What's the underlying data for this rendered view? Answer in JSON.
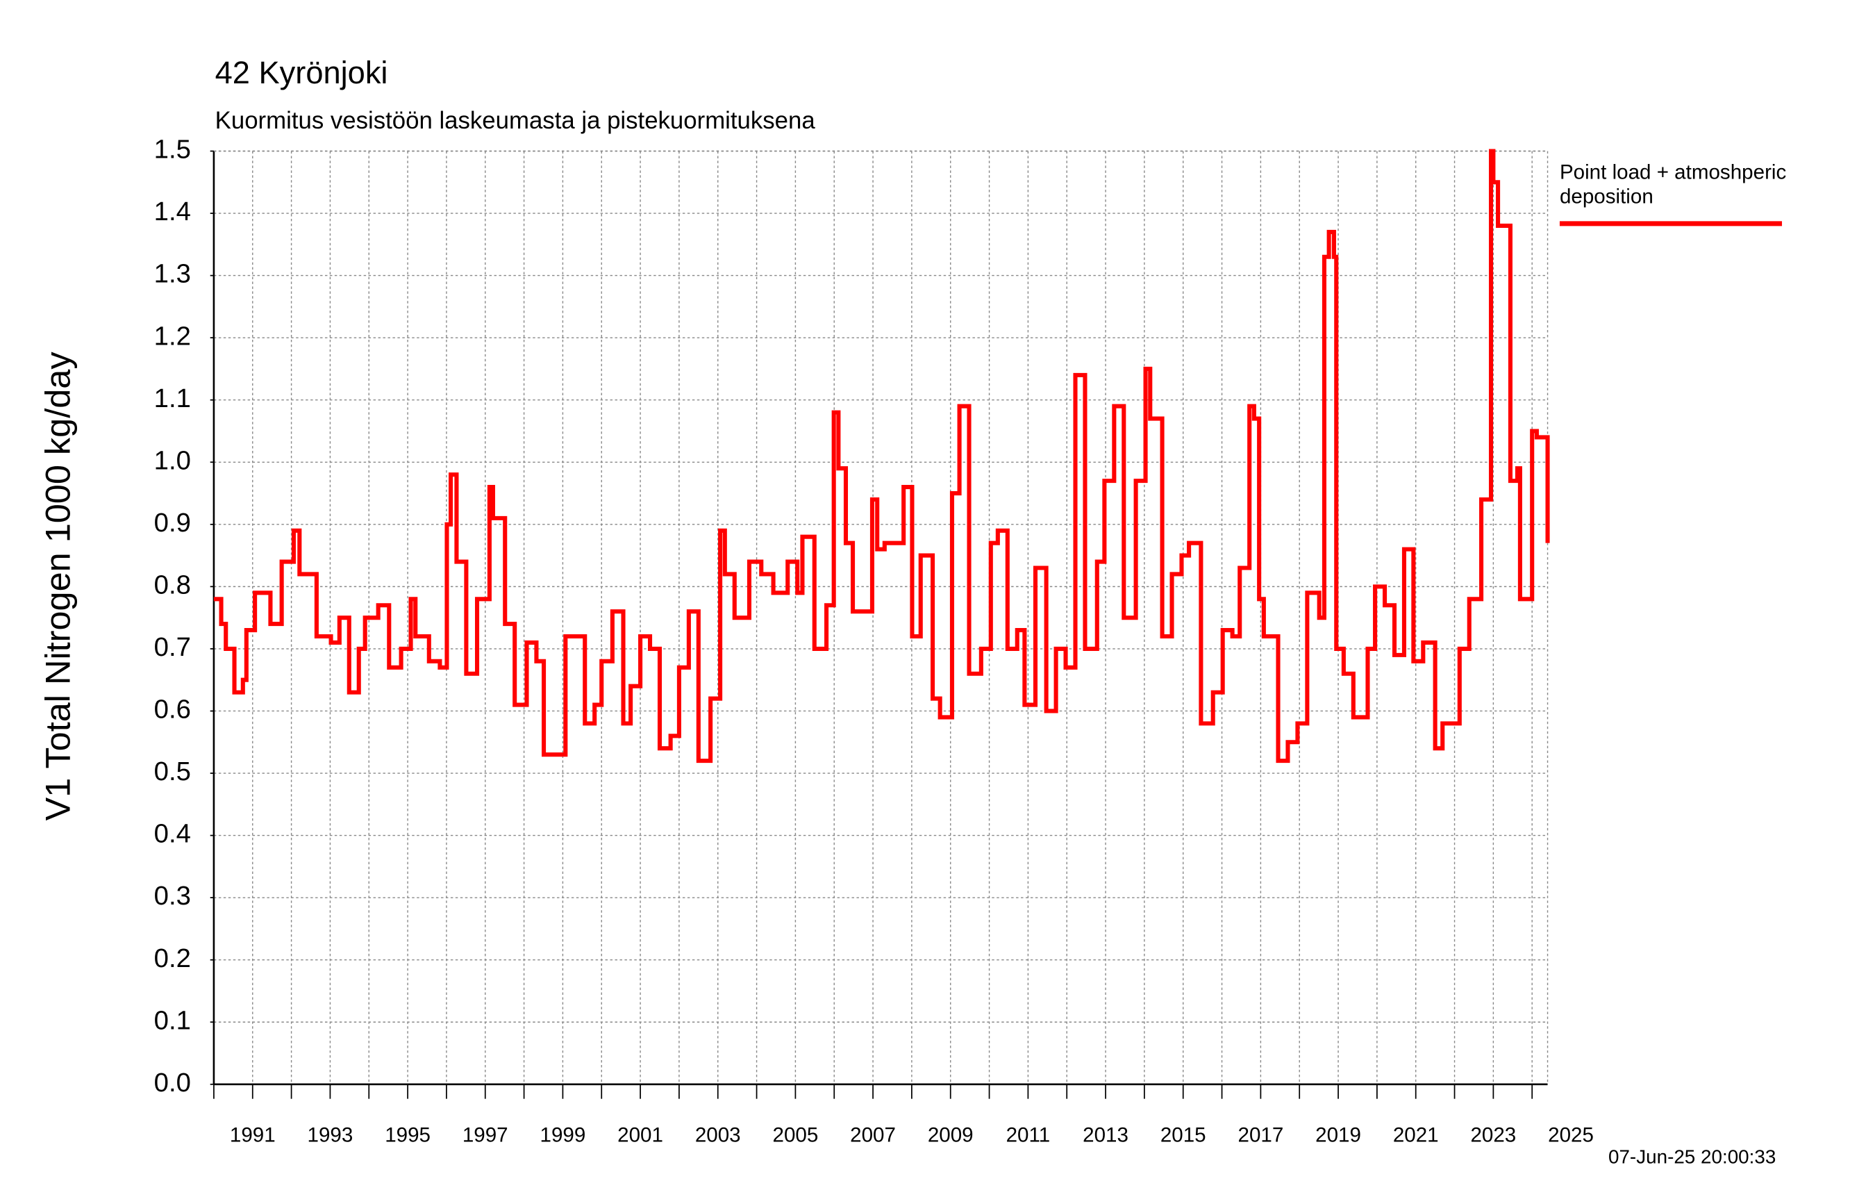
{
  "chart_data": {
    "type": "line",
    "step": true,
    "title": "42 Kyrönjoki",
    "subtitle": "Kuormitus vesistöön laskeumasta ja pistekuormituksena",
    "y_label": "V1 Total Nitrogen 1000 kg/day",
    "timestamp": "07-Jun-25 20:00:33",
    "xlim": [
      1990,
      2024.4
    ],
    "ylim": [
      0,
      1.5
    ],
    "xticks": [
      1991,
      1993,
      1995,
      1997,
      1999,
      2001,
      2003,
      2005,
      2007,
      2009,
      2011,
      2013,
      2015,
      2017,
      2019,
      2021,
      2023,
      2025
    ],
    "xminor_ticks": [
      1990,
      1992,
      1994,
      1996,
      1998,
      2000,
      2002,
      2004,
      2006,
      2008,
      2010,
      2012,
      2014,
      2016,
      2018,
      2020,
      2022,
      2024
    ],
    "yticks": [
      {
        "value": 0,
        "label": "0.0"
      },
      0.1,
      0.2,
      0.3,
      0.4,
      0.5,
      0.6,
      0.7,
      0.8,
      0.9,
      {
        "value": 1,
        "label": "1.0"
      },
      1.1,
      1.2,
      1.3,
      1.4,
      1.5
    ],
    "grid": true,
    "legend_position": "right",
    "x": [
      1990.0,
      1990.19,
      1990.31,
      1990.53,
      1990.75,
      1990.84,
      1991.06,
      1991.46,
      1991.75,
      1992.06,
      1992.21,
      1992.65,
      1993.02,
      1993.24,
      1993.49,
      1993.74,
      1993.9,
      1994.24,
      1994.52,
      1994.83,
      1995.08,
      1995.2,
      1995.55,
      1995.83,
      1996.01,
      1996.11,
      1996.26,
      1996.51,
      1996.79,
      1997.11,
      1997.2,
      1997.51,
      1997.76,
      1998.07,
      1998.32,
      1998.51,
      1998.82,
      1999.07,
      1999.57,
      1999.82,
      2000.0,
      2000.28,
      2000.56,
      2000.75,
      2001.0,
      2001.25,
      2001.5,
      2001.78,
      2002.0,
      2002.25,
      2002.5,
      2002.81,
      2003.06,
      2003.18,
      2003.43,
      2003.81,
      2004.12,
      2004.43,
      2004.8,
      2005.05,
      2005.18,
      2005.49,
      2005.8,
      2005.99,
      2006.11,
      2006.3,
      2006.48,
      2006.98,
      2007.11,
      2007.3,
      2007.79,
      2008.01,
      2008.23,
      2008.54,
      2008.73,
      2009.04,
      2009.23,
      2009.48,
      2009.79,
      2010.04,
      2010.22,
      2010.47,
      2010.72,
      2010.91,
      2011.19,
      2011.47,
      2011.72,
      2011.97,
      2012.22,
      2012.47,
      2012.78,
      2012.97,
      2013.22,
      2013.47,
      2013.78,
      2014.03,
      2014.15,
      2014.46,
      2014.71,
      2014.96,
      2015.15,
      2015.46,
      2015.77,
      2016.02,
      2016.27,
      2016.46,
      2016.71,
      2016.83,
      2016.96,
      2017.08,
      2017.45,
      2017.7,
      2017.95,
      2018.2,
      2018.51,
      2018.64,
      2018.76,
      2018.89,
      2018.95,
      2019.14,
      2019.39,
      2019.76,
      2019.95,
      2020.2,
      2020.45,
      2020.7,
      2020.94,
      2021.19,
      2021.5,
      2021.69,
      2021.94,
      2022.13,
      2022.38,
      2022.69,
      2022.94,
      2023.0,
      2023.12,
      2023.44,
      2023.62,
      2023.69,
      2024.0,
      2024.12,
      2024.4
    ],
    "series": [
      {
        "name": "Point load + atmoshperic deposition",
        "color": "#ff0000",
        "values": [
          0.78,
          0.74,
          0.7,
          0.63,
          0.65,
          0.73,
          0.79,
          0.74,
          0.84,
          0.89,
          0.82,
          0.72,
          0.71,
          0.75,
          0.63,
          0.7,
          0.75,
          0.77,
          0.67,
          0.7,
          0.78,
          0.72,
          0.68,
          0.67,
          0.9,
          0.98,
          0.84,
          0.66,
          0.78,
          0.96,
          0.91,
          0.74,
          0.61,
          0.71,
          0.68,
          0.53,
          0.53,
          0.72,
          0.58,
          0.61,
          0.68,
          0.76,
          0.58,
          0.64,
          0.72,
          0.7,
          0.54,
          0.56,
          0.67,
          0.76,
          0.52,
          0.62,
          0.89,
          0.82,
          0.75,
          0.84,
          0.82,
          0.79,
          0.84,
          0.79,
          0.88,
          0.7,
          0.77,
          1.08,
          0.99,
          0.87,
          0.76,
          0.94,
          0.86,
          0.87,
          0.96,
          0.72,
          0.85,
          0.62,
          0.59,
          0.95,
          1.09,
          0.66,
          0.7,
          0.87,
          0.89,
          0.7,
          0.73,
          0.61,
          0.83,
          0.6,
          0.7,
          0.67,
          1.14,
          0.7,
          0.84,
          0.97,
          1.09,
          0.75,
          0.97,
          1.15,
          1.07,
          0.72,
          0.82,
          0.85,
          0.87,
          0.58,
          0.63,
          0.73,
          0.72,
          0.83,
          1.09,
          1.07,
          0.78,
          0.72,
          0.52,
          0.55,
          0.58,
          0.79,
          0.75,
          1.33,
          1.37,
          1.33,
          0.7,
          0.66,
          0.59,
          0.7,
          0.8,
          0.77,
          0.69,
          0.86,
          0.68,
          0.71,
          0.54,
          0.58,
          0.58,
          0.7,
          0.78,
          0.94,
          1.5,
          1.45,
          1.38,
          0.97,
          0.99,
          0.78,
          1.05,
          1.04,
          0.87
        ]
      }
    ]
  }
}
